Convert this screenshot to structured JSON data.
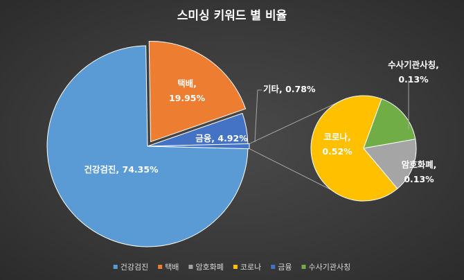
{
  "chart_data": {
    "type": "pie",
    "subtype": "pie-of-pie",
    "title": "스미싱 키워드 별 비율",
    "slices": [
      {
        "label": "건강검진",
        "value": 74.35,
        "display": "74.35%",
        "color": "#5b9bd5",
        "group": "main"
      },
      {
        "label": "택배",
        "value": 19.95,
        "display": "19.95%",
        "color": "#ed7d31",
        "group": "main"
      },
      {
        "label": "금융",
        "value": 4.92,
        "display": "4.92%",
        "color": "#4472c4",
        "group": "main"
      },
      {
        "label": "기타",
        "value": 0.78,
        "display": "0.78%",
        "color": "#4472c4",
        "group": "main"
      },
      {
        "label": "코로나",
        "value": 0.52,
        "display": "0.52%",
        "color": "#ffc000",
        "group": "sub"
      },
      {
        "label": "암호화폐",
        "value": 0.13,
        "display": "0.13%",
        "color": "#a5a5a5",
        "group": "sub"
      },
      {
        "label": "수사기관사칭",
        "value": 0.13,
        "display": "0.13%",
        "color": "#70ad47",
        "group": "sub"
      }
    ],
    "legend": {
      "position": "bottom",
      "items": [
        {
          "label": "건강검진",
          "color": "#5b9bd5"
        },
        {
          "label": "택배",
          "color": "#ed7d31"
        },
        {
          "label": "암호화폐",
          "color": "#a5a5a5"
        },
        {
          "label": "코로나",
          "color": "#ffc000"
        },
        {
          "label": "금융",
          "color": "#4472c4"
        },
        {
          "label": "수사기관사칭",
          "color": "#70ad47"
        }
      ]
    }
  }
}
